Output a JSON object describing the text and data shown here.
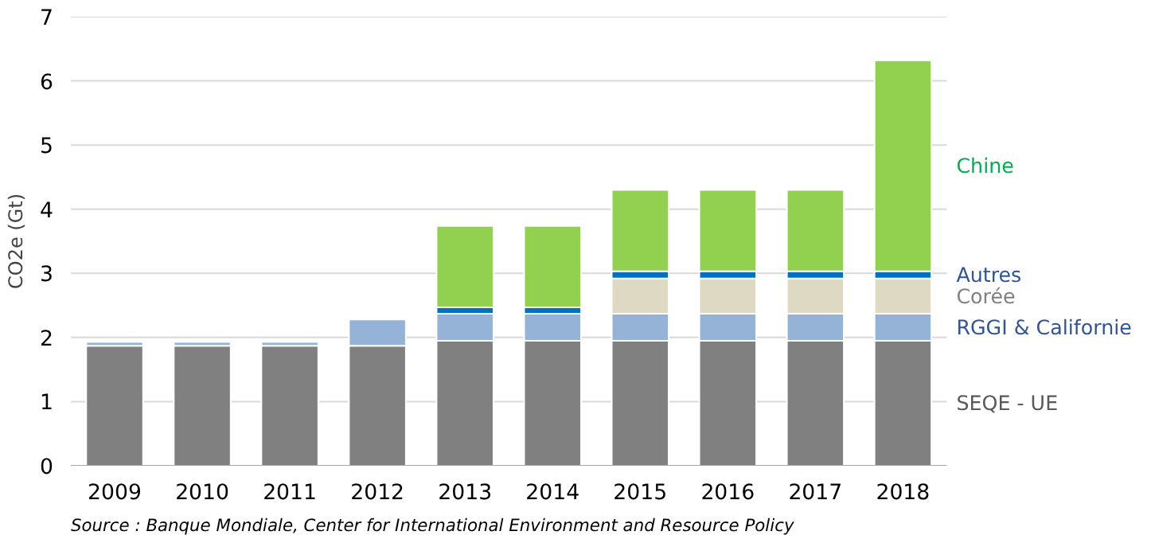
{
  "chart_data": {
    "type": "bar",
    "stacked": true,
    "ylabel": "CO2e (Gt)",
    "categories": [
      "2009",
      "2010",
      "2011",
      "2012",
      "2013",
      "2014",
      "2015",
      "2016",
      "2017",
      "2018"
    ],
    "series": [
      {
        "name": "SEQE - UE",
        "color": "#808080",
        "values": [
          1.87,
          1.87,
          1.87,
          1.87,
          1.95,
          1.95,
          1.95,
          1.95,
          1.95,
          1.95
        ]
      },
      {
        "name": "RGGI & Californie",
        "color": "#95b3d7",
        "values": [
          0.06,
          0.06,
          0.06,
          0.41,
          0.42,
          0.42,
          0.42,
          0.42,
          0.42,
          0.42
        ]
      },
      {
        "name": "Corée",
        "color": "#ddd9c3",
        "values": [
          0,
          0,
          0,
          0,
          0,
          0,
          0.55,
          0.55,
          0.55,
          0.55
        ]
      },
      {
        "name": "Autres",
        "color": "#0070c0",
        "values": [
          0,
          0,
          0,
          0,
          0.1,
          0.1,
          0.11,
          0.11,
          0.11,
          0.11
        ]
      },
      {
        "name": "Chine",
        "color": "#92d050",
        "values": [
          0,
          0,
          0,
          0,
          1.27,
          1.27,
          1.27,
          1.27,
          1.27,
          3.29
        ]
      }
    ],
    "ylim": [
      0,
      7
    ],
    "yticks": [
      0,
      1,
      2,
      3,
      4,
      5,
      6,
      7
    ],
    "grid": "y",
    "annotations": [
      "Source : Banque Mondiale,  Center for International Environment and Resource Policy"
    ]
  }
}
